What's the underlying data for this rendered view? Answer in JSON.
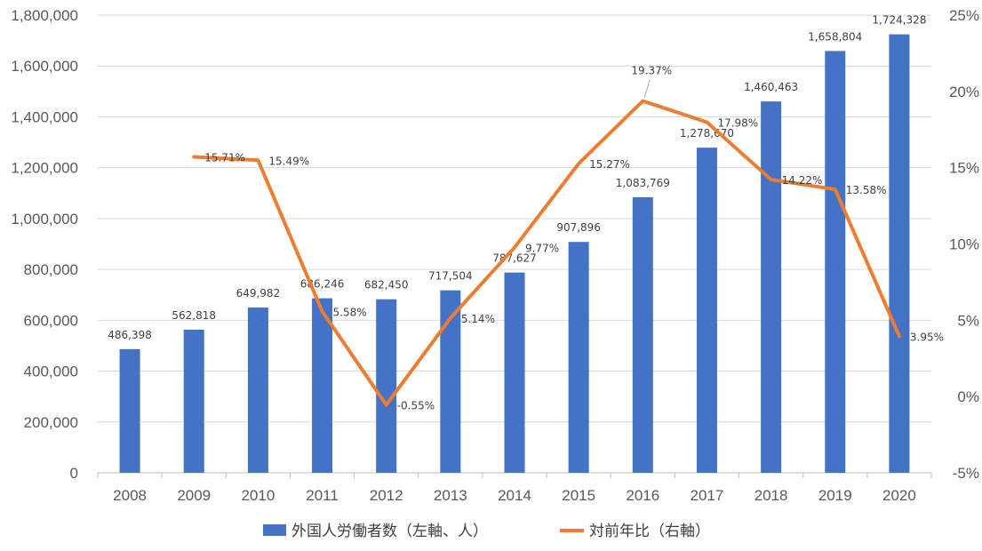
{
  "chart_data": {
    "type": "bar+line",
    "categories": [
      "2008",
      "2009",
      "2010",
      "2011",
      "2012",
      "2013",
      "2014",
      "2015",
      "2016",
      "2017",
      "2018",
      "2019",
      "2020"
    ],
    "series": [
      {
        "name": "外国人労働者数（左軸、人）",
        "type": "bar",
        "axis": "left",
        "color": "#4472C4",
        "values": [
          486398,
          562818,
          649982,
          686246,
          682450,
          717504,
          787627,
          907896,
          1083769,
          1278670,
          1460463,
          1658804,
          1724328
        ],
        "labels": [
          "486,398",
          "562,818",
          "649,982",
          "686,246",
          "682,450",
          "717,504",
          "787,627",
          "907,896",
          "1,083,769",
          "1,278,670",
          "1,460,463",
          "1,658,804",
          "1,724,328"
        ]
      },
      {
        "name": "対前年比（右軸）",
        "type": "line",
        "axis": "right",
        "color": "#ED7D31",
        "values": [
          null,
          15.71,
          15.49,
          5.58,
          -0.55,
          5.14,
          9.77,
          15.27,
          19.37,
          17.98,
          14.22,
          13.58,
          3.95
        ],
        "labels": [
          null,
          "15.71%",
          "15.49%",
          "5.58%",
          "-0.55%",
          "5.14%",
          "9.77%",
          "15.27%",
          "19.37%",
          "17.98%",
          "14.22%",
          "13.58%",
          "3.95%"
        ]
      }
    ],
    "y_left": {
      "ylim": [
        0,
        1800000
      ],
      "ticks": [
        "0",
        "200,000",
        "400,000",
        "600,000",
        "800,000",
        "1,000,000",
        "1,200,000",
        "1,400,000",
        "1,600,000",
        "1,800,000"
      ]
    },
    "y_right": {
      "ylim": [
        -5,
        25
      ],
      "ticks": [
        "-5%",
        "0%",
        "5%",
        "10%",
        "15%",
        "20%",
        "25%"
      ]
    },
    "grid": "horizontal",
    "legend_position": "bottom"
  }
}
